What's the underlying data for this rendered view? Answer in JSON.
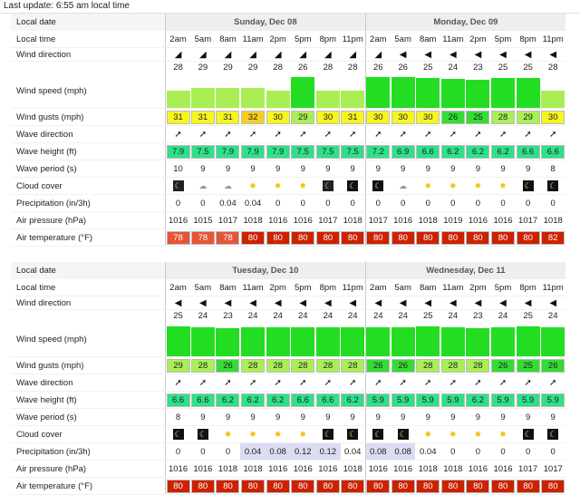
{
  "header": {
    "last_update": "Last update: 6:55 am local time"
  },
  "labels": {
    "local_date": "Local date",
    "local_time": "Local time",
    "wind_direction": "Wind direction",
    "wind_speed": "Wind speed (mph)",
    "wind_gusts": "Wind gusts (mph)",
    "wave_direction": "Wave direction",
    "wave_height": "Wave height (ft)",
    "wave_period": "Wave period (s)",
    "cloud_cover": "Cloud cover",
    "precipitation": "Precipitation (in/3h)",
    "air_pressure": "Air pressure (hPa)",
    "air_temperature": "Air temperature (°F)"
  },
  "colors": {
    "wind_strong": "#22dd22",
    "wind_light": "#aaee55",
    "gust_yellow": "#f5f520",
    "gust_orange": "#f5cf20",
    "gust_green": "#33dd33",
    "gust_lightgreen": "#aaee55",
    "wave": "#2fe08a",
    "temp_dark": "#cc2200",
    "temp_light": "#e55535"
  },
  "tables": [
    {
      "days": [
        "Sunday, Dec 08",
        "Monday, Dec 09"
      ],
      "times": [
        "2am",
        "5am",
        "8am",
        "11am",
        "2pm",
        "5pm",
        "8pm",
        "11pm",
        "2am",
        "5am",
        "8am",
        "11am",
        "2pm",
        "5pm",
        "8pm",
        "11pm"
      ],
      "wind_dir_icon": [
        "arrow-ne-icon",
        "arrow-ne-icon",
        "arrow-ne-icon",
        "arrow-ne-icon",
        "arrow-ne-icon",
        "arrow-ne-icon",
        "arrow-ne-icon",
        "arrow-ne-icon",
        "arrow-ne-icon",
        "arrow-w-icon",
        "arrow-w-icon",
        "arrow-w-icon",
        "arrow-w-icon",
        "arrow-w-icon",
        "arrow-w-icon",
        "arrow-w-icon"
      ],
      "wind_dir_glyph": [
        "◢",
        "◢",
        "◢",
        "◢",
        "◢",
        "◢",
        "◢",
        "◢",
        "◢",
        "◀",
        "◀",
        "◀",
        "◀",
        "◀",
        "◀",
        "◀"
      ],
      "wind_speed": [
        "28",
        "29",
        "29",
        "29",
        "28",
        "26",
        "28",
        "28",
        "26",
        "26",
        "25",
        "24",
        "23",
        "25",
        "25",
        "28"
      ],
      "wind_speed_level": [
        0.52,
        0.6,
        0.6,
        0.6,
        0.52,
        0.95,
        0.52,
        0.52,
        0.95,
        0.95,
        0.92,
        0.88,
        0.85,
        0.92,
        0.92,
        0.52
      ],
      "wind_speed_color": [
        "#aaee55",
        "#aaee55",
        "#aaee55",
        "#aaee55",
        "#aaee55",
        "#22dd22",
        "#aaee55",
        "#aaee55",
        "#22dd22",
        "#22dd22",
        "#22dd22",
        "#22dd22",
        "#22dd22",
        "#22dd22",
        "#22dd22",
        "#aaee55"
      ],
      "gusts": [
        "31",
        "31",
        "31",
        "32",
        "30",
        "29",
        "30",
        "31",
        "30",
        "30",
        "30",
        "26",
        "25",
        "28",
        "29",
        "30"
      ],
      "gust_color": [
        "#f5f520",
        "#f5f520",
        "#f5f520",
        "#f5cf20",
        "#f5f520",
        "#aaee55",
        "#f5f520",
        "#f5f520",
        "#f5f520",
        "#f5f520",
        "#f5f520",
        "#33dd33",
        "#33dd33",
        "#aaee55",
        "#aaee55",
        "#f5f520"
      ],
      "wave_dir_glyph": [
        "➚",
        "➚",
        "➚",
        "➚",
        "➚",
        "➚",
        "➚",
        "➚",
        "➚",
        "➚",
        "➚",
        "➚",
        "➚",
        "➚",
        "➚",
        "➚"
      ],
      "wave_height": [
        "7.9",
        "7.5",
        "7.9",
        "7.9",
        "7.9",
        "7.5",
        "7.5",
        "7.5",
        "7.2",
        "6.9",
        "6.6",
        "6.2",
        "6.2",
        "6.2",
        "6.6",
        "6.6"
      ],
      "wave_period": [
        "10",
        "9",
        "9",
        "9",
        "9",
        "9",
        "9",
        "9",
        "9",
        "9",
        "9",
        "9",
        "9",
        "9",
        "9",
        "8"
      ],
      "cloud": [
        "night-cloud",
        "day-cloud",
        "cloud",
        "sun-cloud",
        "sun-cloud",
        "sun-cloud",
        "night-cloud",
        "night",
        "night",
        "day-cloud",
        "sun-cloud",
        "sun-cloud",
        "sun",
        "sun",
        "night",
        "night"
      ],
      "cloud_icon": [
        "moon-cloud-icon",
        "sun-cloud-icon",
        "cloud-icon",
        "sun-cloud-icon",
        "sun-cloud-icon",
        "sun-cloud-icon",
        "moon-cloud-icon",
        "moon-icon",
        "moon-icon",
        "sun-cloud-icon",
        "sun-cloud-icon",
        "sun-cloud-icon",
        "sun-icon",
        "sun-icon",
        "moon-icon",
        "moon-icon"
      ],
      "precip": [
        "0",
        "0",
        "0.04",
        "0.04",
        "0",
        "0",
        "0",
        "0",
        "0",
        "0",
        "0",
        "0",
        "0",
        "0",
        "0",
        "0"
      ],
      "precip_hi": [
        false,
        false,
        false,
        false,
        false,
        false,
        false,
        false,
        false,
        false,
        false,
        false,
        false,
        false,
        false,
        false
      ],
      "pressure": [
        "1016",
        "1015",
        "1017",
        "1018",
        "1016",
        "1016",
        "1017",
        "1018",
        "1017",
        "1016",
        "1018",
        "1019",
        "1016",
        "1016",
        "1017",
        "1018"
      ],
      "temp": [
        "78",
        "78",
        "78",
        "80",
        "80",
        "80",
        "80",
        "80",
        "80",
        "80",
        "80",
        "80",
        "80",
        "80",
        "80",
        "82"
      ],
      "temp_color": [
        "#e55535",
        "#e55535",
        "#e55535",
        "#cc2200",
        "#cc2200",
        "#cc2200",
        "#cc2200",
        "#cc2200",
        "#cc2200",
        "#cc2200",
        "#cc2200",
        "#cc2200",
        "#cc2200",
        "#cc2200",
        "#cc2200",
        "#cc2200"
      ]
    },
    {
      "days": [
        "Tuesday, Dec 10",
        "Wednesday, Dec 11"
      ],
      "times": [
        "2am",
        "5am",
        "8am",
        "11am",
        "2pm",
        "5pm",
        "8pm",
        "11pm",
        "2am",
        "5am",
        "8am",
        "11am",
        "2pm",
        "5pm",
        "8pm",
        "11pm"
      ],
      "wind_dir_icon": [
        "arrow-w-icon",
        "arrow-w-icon",
        "arrow-w-icon",
        "arrow-w-icon",
        "arrow-w-icon",
        "arrow-w-icon",
        "arrow-w-icon",
        "arrow-w-icon",
        "arrow-w-icon",
        "arrow-w-icon",
        "arrow-w-icon",
        "arrow-w-icon",
        "arrow-w-icon",
        "arrow-w-icon",
        "arrow-w-icon",
        "arrow-w-icon"
      ],
      "wind_dir_glyph": [
        "◀",
        "◀",
        "◀",
        "◀",
        "◀",
        "◀",
        "◀",
        "◀",
        "◀",
        "◀",
        "◀",
        "◀",
        "◀",
        "◀",
        "◀",
        "◀"
      ],
      "wind_speed": [
        "25",
        "24",
        "23",
        "24",
        "24",
        "24",
        "24",
        "24",
        "24",
        "24",
        "25",
        "24",
        "23",
        "24",
        "25",
        "24"
      ],
      "wind_speed_level": [
        0.92,
        0.88,
        0.85,
        0.88,
        0.88,
        0.88,
        0.88,
        0.88,
        0.88,
        0.88,
        0.92,
        0.88,
        0.85,
        0.88,
        0.92,
        0.88
      ],
      "wind_speed_color": [
        "#22dd22",
        "#22dd22",
        "#22dd22",
        "#22dd22",
        "#22dd22",
        "#22dd22",
        "#22dd22",
        "#22dd22",
        "#22dd22",
        "#22dd22",
        "#22dd22",
        "#22dd22",
        "#22dd22",
        "#22dd22",
        "#22dd22",
        "#22dd22"
      ],
      "gusts": [
        "29",
        "28",
        "26",
        "28",
        "28",
        "28",
        "28",
        "28",
        "26",
        "26",
        "28",
        "28",
        "28",
        "26",
        "25",
        "26"
      ],
      "gust_color": [
        "#aaee55",
        "#aaee55",
        "#33dd33",
        "#aaee55",
        "#aaee55",
        "#aaee55",
        "#aaee55",
        "#aaee55",
        "#33dd33",
        "#33dd33",
        "#aaee55",
        "#aaee55",
        "#aaee55",
        "#33dd33",
        "#33dd33",
        "#33dd33"
      ],
      "wave_dir_glyph": [
        "➚",
        "➚",
        "➚",
        "➚",
        "➚",
        "➚",
        "➚",
        "➚",
        "➚",
        "➚",
        "➚",
        "➚",
        "➚",
        "➚",
        "➚",
        "➚"
      ],
      "wave_height": [
        "6.6",
        "6.6",
        "6.2",
        "6.2",
        "6.2",
        "6.6",
        "6.6",
        "6.2",
        "5.9",
        "5.9",
        "5.9",
        "5.9",
        "6.2",
        "5.9",
        "5.9",
        "5.9"
      ],
      "wave_period": [
        "8",
        "9",
        "9",
        "9",
        "9",
        "9",
        "9",
        "9",
        "9",
        "9",
        "9",
        "9",
        "9",
        "9",
        "9",
        "9"
      ],
      "cloud": [
        "night",
        "night",
        "sun",
        "sun",
        "sun",
        "sun",
        "night",
        "night",
        "night",
        "night",
        "sun",
        "sun",
        "sun",
        "sun",
        "night",
        "night"
      ],
      "cloud_icon": [
        "moon-icon",
        "moon-icon",
        "sun-icon",
        "sun-icon",
        "sun-icon",
        "sun-icon",
        "moon-icon",
        "moon-icon",
        "moon-icon",
        "moon-icon",
        "sun-icon",
        "sun-icon",
        "sun-icon",
        "sun-icon",
        "moon-icon",
        "moon-icon"
      ],
      "precip": [
        "0",
        "0",
        "0",
        "0.04",
        "0.08",
        "0.12",
        "0.12",
        "0.04",
        "0.08",
        "0.08",
        "0.04",
        "0",
        "0",
        "0",
        "0",
        "0"
      ],
      "precip_hi": [
        false,
        false,
        false,
        true,
        true,
        true,
        true,
        false,
        true,
        true,
        false,
        false,
        false,
        false,
        false,
        false
      ],
      "pressure": [
        "1016",
        "1016",
        "1018",
        "1018",
        "1016",
        "1016",
        "1016",
        "1018",
        "1016",
        "1016",
        "1018",
        "1018",
        "1016",
        "1016",
        "1017",
        "1017"
      ],
      "temp": [
        "80",
        "80",
        "80",
        "80",
        "80",
        "80",
        "80",
        "80",
        "80",
        "80",
        "80",
        "80",
        "80",
        "80",
        "80",
        "80"
      ],
      "temp_color": [
        "#cc2200",
        "#cc2200",
        "#cc2200",
        "#cc2200",
        "#cc2200",
        "#cc2200",
        "#cc2200",
        "#cc2200",
        "#cc2200",
        "#cc2200",
        "#cc2200",
        "#cc2200",
        "#cc2200",
        "#cc2200",
        "#cc2200",
        "#cc2200"
      ]
    }
  ]
}
